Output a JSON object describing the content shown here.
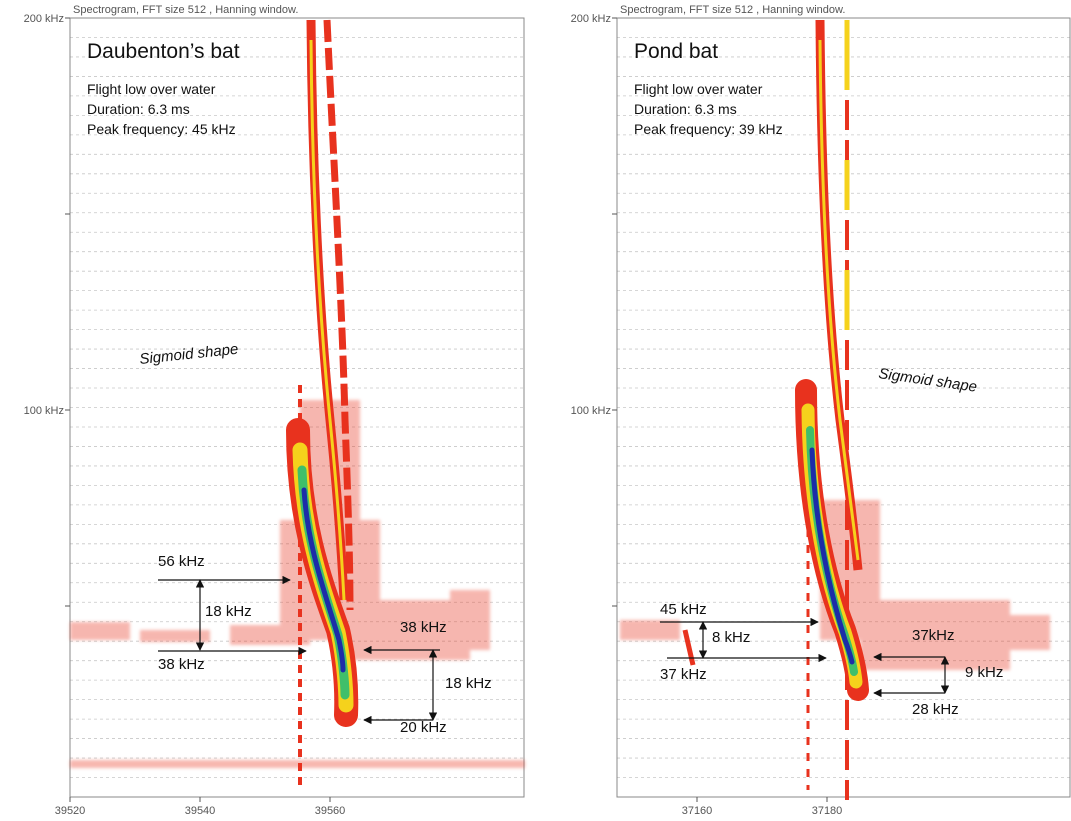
{
  "panels": [
    {
      "header": "Spectrogram, FFT size 512 , Hanning window.",
      "y_labels": [
        "200 kHz",
        "100 kHz"
      ],
      "x_labels": [
        "39520",
        "39540",
        "39560"
      ],
      "title": "Daubenton’s bat",
      "info": [
        "Flight low over water",
        "Duration: 6.3 ms",
        "Peak frequency: 45 kHz"
      ],
      "shape_label": "Sigmoid shape",
      "annotations": [
        "56 kHz",
        "18 kHz",
        "38 kHz",
        "38 kHz",
        "18 kHz",
        "20 kHz"
      ]
    },
    {
      "header": "Spectrogram, FFT size 512 , Hanning window.",
      "y_labels": [
        "200 kHz",
        "100 kHz"
      ],
      "x_labels": [
        "37160",
        "37180"
      ],
      "title": "Pond bat",
      "info": [
        "Flight low over water",
        "Duration: 6.3 ms",
        "Peak frequency: 39 kHz"
      ],
      "shape_label": "Sigmoid shape",
      "annotations": [
        "45 kHz",
        "8 kHz",
        "37 kHz",
        "37kHz",
        "9 kHz",
        "28 kHz"
      ]
    }
  ]
}
